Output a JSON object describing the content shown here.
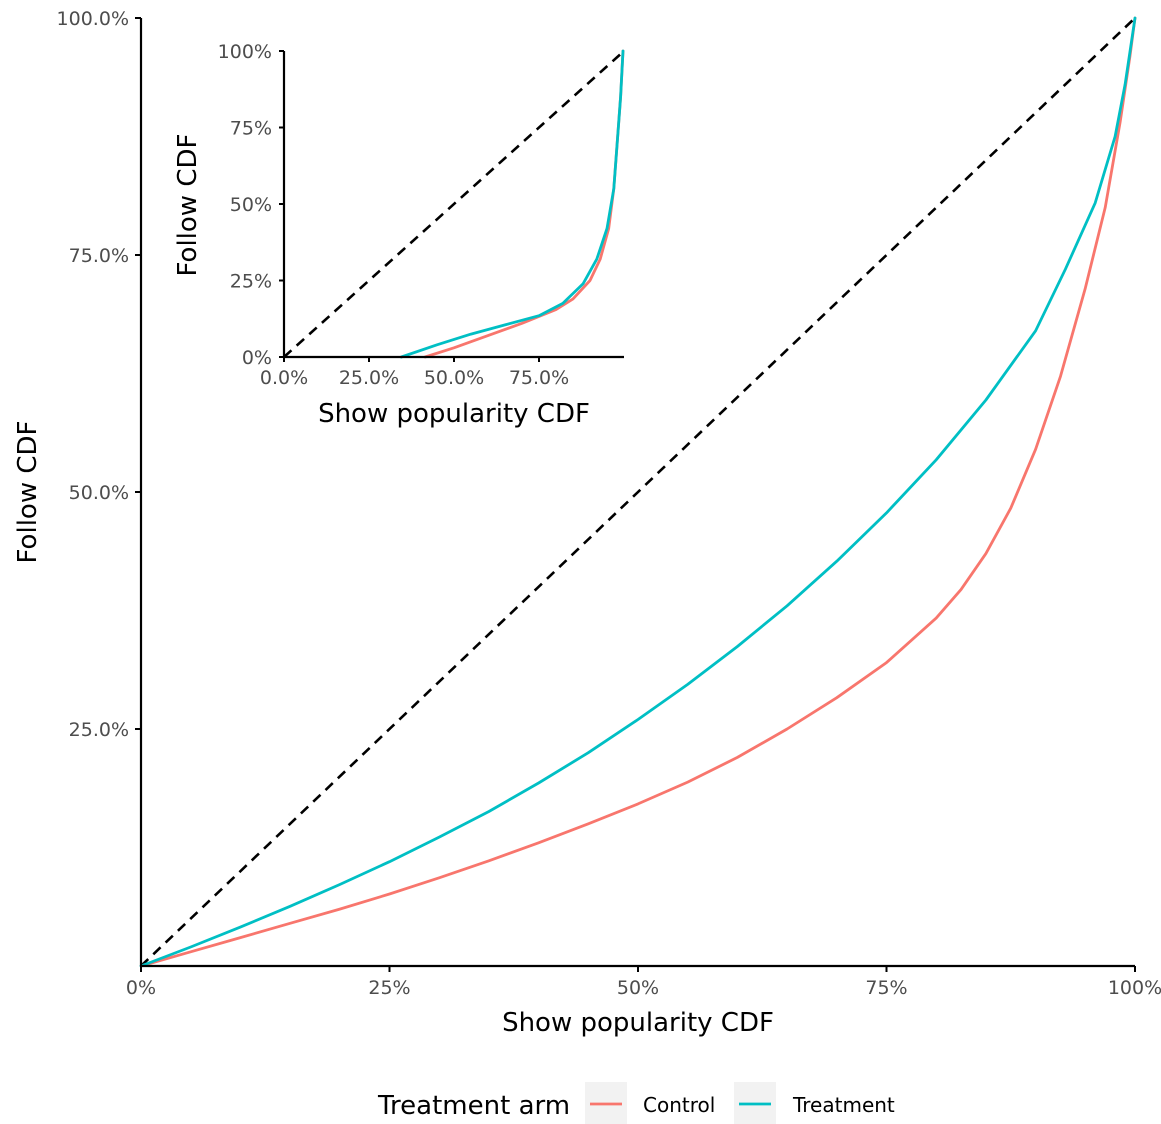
{
  "chart_data": [
    {
      "type": "line",
      "panel": "main",
      "xlabel": "Show popularity CDF",
      "ylabel": "Follow CDF",
      "xlim": [
        0,
        1
      ],
      "ylim": [
        0,
        1
      ],
      "x_ticks": [
        0,
        0.25,
        0.5,
        0.75,
        1
      ],
      "x_tick_labels": [
        "0%",
        "25%",
        "50%",
        "75%",
        "100%"
      ],
      "y_ticks": [
        0.25,
        0.5,
        0.75,
        1
      ],
      "y_tick_labels": [
        "25.0%",
        "50.0%",
        "75.0%",
        "100.0%"
      ],
      "grid": false,
      "reference_line": {
        "style": "dashed",
        "from": [
          0,
          0
        ],
        "to": [
          1,
          1
        ]
      },
      "series": [
        {
          "name": "Control",
          "color": "#F8766D",
          "points": [
            [
              0,
              0
            ],
            [
              0.05,
              0.015
            ],
            [
              0.1,
              0.03
            ],
            [
              0.15,
              0.045
            ],
            [
              0.2,
              0.06
            ],
            [
              0.25,
              0.076
            ],
            [
              0.3,
              0.093
            ],
            [
              0.35,
              0.111
            ],
            [
              0.4,
              0.13
            ],
            [
              0.45,
              0.15
            ],
            [
              0.5,
              0.171
            ],
            [
              0.55,
              0.194
            ],
            [
              0.6,
              0.22
            ],
            [
              0.65,
              0.25
            ],
            [
              0.7,
              0.283
            ],
            [
              0.75,
              0.32
            ],
            [
              0.8,
              0.367
            ],
            [
              0.825,
              0.397
            ],
            [
              0.85,
              0.435
            ],
            [
              0.875,
              0.483
            ],
            [
              0.9,
              0.545
            ],
            [
              0.925,
              0.622
            ],
            [
              0.95,
              0.715
            ],
            [
              0.97,
              0.8
            ],
            [
              0.985,
              0.89
            ],
            [
              0.995,
              0.96
            ],
            [
              1,
              1
            ]
          ]
        },
        {
          "name": "Treatment",
          "color": "#00BFC4",
          "points": [
            [
              0,
              0
            ],
            [
              0.05,
              0.02
            ],
            [
              0.1,
              0.041
            ],
            [
              0.15,
              0.063
            ],
            [
              0.2,
              0.086
            ],
            [
              0.25,
              0.11
            ],
            [
              0.3,
              0.136
            ],
            [
              0.35,
              0.163
            ],
            [
              0.4,
              0.193
            ],
            [
              0.45,
              0.225
            ],
            [
              0.5,
              0.26
            ],
            [
              0.55,
              0.297
            ],
            [
              0.6,
              0.337
            ],
            [
              0.65,
              0.38
            ],
            [
              0.7,
              0.427
            ],
            [
              0.75,
              0.478
            ],
            [
              0.8,
              0.534
            ],
            [
              0.85,
              0.597
            ],
            [
              0.9,
              0.67
            ],
            [
              0.93,
              0.735
            ],
            [
              0.96,
              0.805
            ],
            [
              0.98,
              0.875
            ],
            [
              0.99,
              0.93
            ],
            [
              1,
              1
            ]
          ]
        }
      ]
    },
    {
      "type": "line",
      "panel": "inset",
      "xlabel": "Show popularity CDF",
      "ylabel": "Follow CDF",
      "xlim": [
        0,
        1
      ],
      "ylim": [
        0,
        1
      ],
      "x_ticks": [
        0,
        0.25,
        0.5,
        0.75
      ],
      "x_tick_labels": [
        "0.0%",
        "25.0%",
        "50.0%",
        "75.0%"
      ],
      "y_ticks": [
        0,
        0.25,
        0.5,
        0.75,
        1
      ],
      "y_tick_labels": [
        "0%",
        "25%",
        "50%",
        "75%",
        "100%"
      ],
      "grid": false,
      "reference_line": {
        "style": "dashed",
        "from": [
          0,
          0
        ],
        "to": [
          1,
          1
        ]
      },
      "series": [
        {
          "name": "Control",
          "color": "#F8766D",
          "points": [
            [
              0.415,
              0
            ],
            [
              0.5,
              0.03
            ],
            [
              0.6,
              0.07
            ],
            [
              0.7,
              0.11
            ],
            [
              0.8,
              0.155
            ],
            [
              0.85,
              0.19
            ],
            [
              0.9,
              0.25
            ],
            [
              0.93,
              0.32
            ],
            [
              0.955,
              0.42
            ],
            [
              0.97,
              0.55
            ],
            [
              0.98,
              0.7
            ],
            [
              0.99,
              0.85
            ],
            [
              0.997,
              1
            ]
          ]
        },
        {
          "name": "Treatment",
          "color": "#00BFC4",
          "points": [
            [
              0.345,
              0
            ],
            [
              0.45,
              0.04
            ],
            [
              0.55,
              0.075
            ],
            [
              0.65,
              0.105
            ],
            [
              0.75,
              0.135
            ],
            [
              0.82,
              0.175
            ],
            [
              0.88,
              0.24
            ],
            [
              0.92,
              0.32
            ],
            [
              0.95,
              0.42
            ],
            [
              0.97,
              0.55
            ],
            [
              0.98,
              0.7
            ],
            [
              0.99,
              0.85
            ],
            [
              0.997,
              1
            ]
          ]
        }
      ]
    }
  ],
  "legend": {
    "title": "Treatment arm",
    "position": "bottom",
    "items": [
      {
        "label": "Control",
        "color": "#F8766D"
      },
      {
        "label": "Treatment",
        "color": "#00BFC4"
      }
    ]
  }
}
